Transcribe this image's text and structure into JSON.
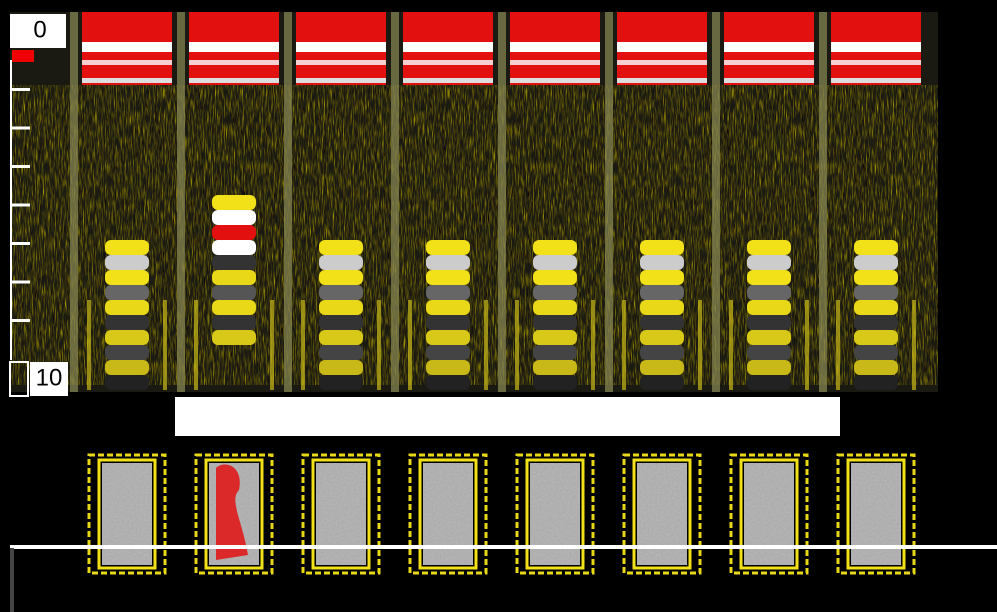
{
  "scale": {
    "labels": [
      "0",
      "10"
    ]
  }
}
